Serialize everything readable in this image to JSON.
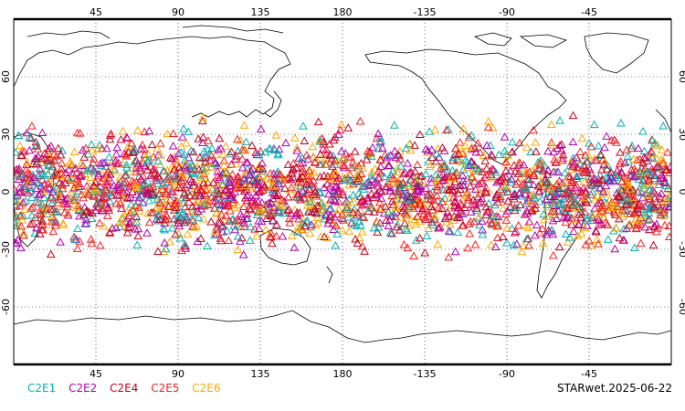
{
  "chart_data": {
    "type": "scatter",
    "projection": "equirectangular",
    "lon_range": [
      0,
      360
    ],
    "lat_range": [
      -90,
      90
    ],
    "grid": true,
    "marker": "triangle-open",
    "x_ticks_top": [
      "45",
      "90",
      "135",
      "180",
      "-135",
      "-90",
      "-45"
    ],
    "x_ticks_bottom": [
      "45",
      "90",
      "135",
      "180",
      "-135",
      "-90",
      "-45"
    ],
    "x_tick_values": [
      45,
      90,
      135,
      180,
      225,
      270,
      315
    ],
    "y_ticks": [
      "60",
      "30",
      "0",
      "-30",
      "-60"
    ],
    "y_tick_values": [
      60,
      30,
      0,
      -30,
      -60
    ],
    "coverage_lat": [
      -40,
      42
    ],
    "series": [
      {
        "name": "C2E1",
        "color": "#00b4b4"
      },
      {
        "name": "C2E2",
        "color": "#b400b4"
      },
      {
        "name": "C2E4",
        "color": "#c8001e"
      },
      {
        "name": "C2E5",
        "color": "#ff1e1e"
      },
      {
        "name": "C2E6",
        "color": "#ffaa00"
      }
    ]
  },
  "footer": {
    "stamp": "STARwet.2025-06-22"
  }
}
